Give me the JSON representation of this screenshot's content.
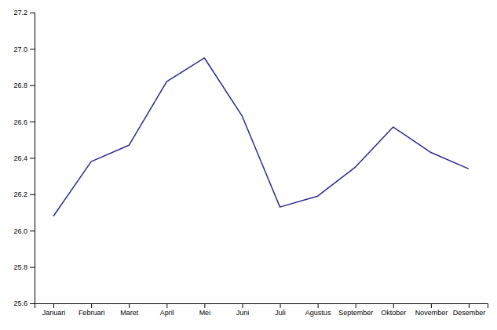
{
  "chart_data": {
    "type": "line",
    "categories": [
      "Januari",
      "Februari",
      "Maret",
      "April",
      "Mei",
      "Juni",
      "Juli",
      "Agustus",
      "September",
      "Oktober",
      "November",
      "Desember"
    ],
    "values": [
      26.08,
      26.38,
      26.47,
      26.82,
      26.95,
      26.63,
      26.13,
      26.19,
      26.35,
      26.57,
      26.43,
      26.34
    ],
    "color": "#2a2a8f",
    "ylim": [
      25.6,
      27.2
    ],
    "yticks": [
      25.6,
      25.8,
      {
        "value": 26,
        "label": "26.0"
      },
      26.2,
      26.4,
      26.6,
      26.8,
      {
        "value": 27,
        "label": "27.0"
      },
      27.2
    ],
    "grid": false
  }
}
